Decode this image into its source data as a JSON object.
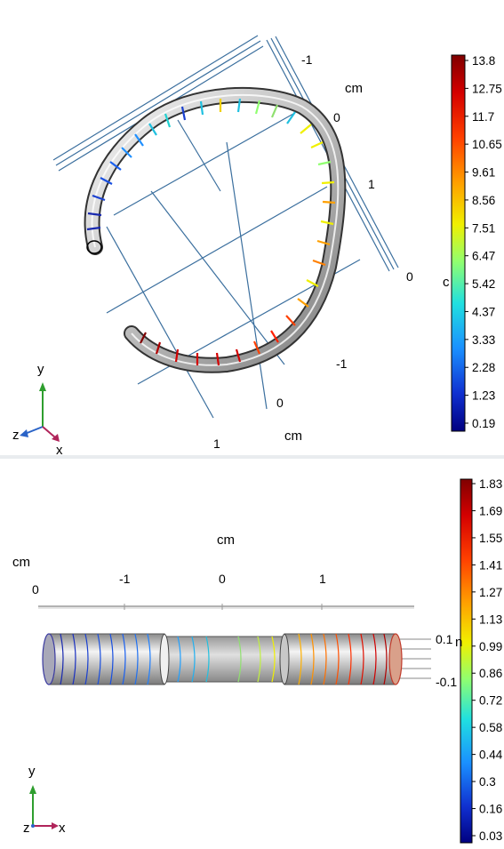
{
  "top_view": {
    "axis_unit_a": "cm",
    "axis_unit_b": "cm",
    "grid_ticks_right": [
      "-1",
      "0",
      "1",
      "0"
    ],
    "grid_ticks_bottom": [
      "-1",
      "0",
      "1"
    ],
    "triad": {
      "y": "y",
      "z": "z",
      "x": "x"
    },
    "colorbar": {
      "labels": [
        "13.8",
        "12.75",
        "11.7",
        "10.65",
        "9.61",
        "8.56",
        "7.51",
        "6.47",
        "5.42",
        "4.37",
        "3.33",
        "2.28",
        "1.23",
        "0.19"
      ],
      "max": 13.8,
      "min": 0.19,
      "side_char": "c"
    }
  },
  "bottom_view": {
    "axis_unit_top": "cm",
    "axis_unit_left": "cm",
    "ticks_x": [
      "-1",
      "0",
      "1"
    ],
    "tick_left_zero": "0",
    "ticks_y": [
      "0.1",
      "-0.1"
    ],
    "triad": {
      "y": "y",
      "z": "z",
      "x": "x"
    },
    "colorbar": {
      "labels": [
        "1.83",
        "1.69",
        "1.55",
        "1.41",
        "1.27",
        "1.13",
        "0.99",
        "0.86",
        "0.72",
        "0.58",
        "0.44",
        "0.3",
        "0.16",
        "0.03"
      ],
      "max": 1.83,
      "min": 0.03,
      "side_char": "n"
    }
  },
  "colors": {
    "grid": "#3b6f9e",
    "tube_light": "#e6e6e6",
    "tube_dark": "#8a8a8a",
    "triad_y": "#2e9e2e",
    "triad_z": "#2a63c7",
    "triad_x": "#b0245a"
  }
}
